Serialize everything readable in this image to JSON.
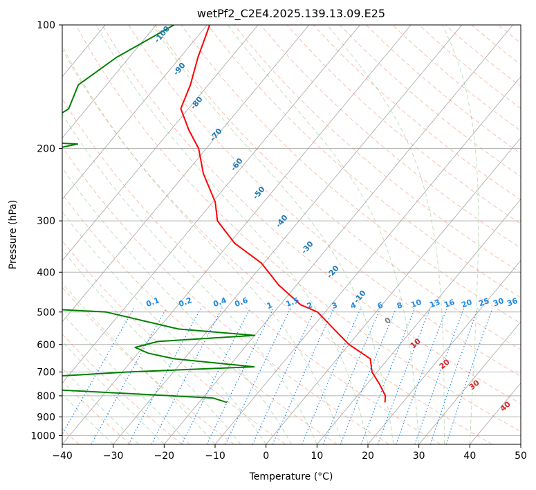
{
  "chart_data": {
    "type": "line",
    "title": "wetPf2_C2E4.2025.139.13.09.E25",
    "xlabel": "Temperature (°C)",
    "ylabel": "Pressure (hPa)",
    "xlim": [
      -40,
      50
    ],
    "ylim": [
      1050,
      100
    ],
    "y_scale": "log",
    "grid": true,
    "x_ticks": [
      -40,
      -30,
      -20,
      -10,
      0,
      10,
      20,
      30,
      40,
      50
    ],
    "y_ticks": [
      100,
      200,
      300,
      400,
      500,
      600,
      700,
      800,
      900,
      1000
    ],
    "x_tick_labels": [
      "−40",
      "−30",
      "−20",
      "−10",
      "0",
      "10",
      "20",
      "30",
      "40",
      "50"
    ],
    "y_tick_labels": [
      "100",
      "200",
      "300",
      "400",
      "500",
      "600",
      "700",
      "800",
      "900",
      "1000"
    ],
    "temperature_profile": {
      "color": "#ff0000",
      "points": [
        [
          -79.5,
          100
        ],
        [
          -76.5,
          120
        ],
        [
          -73.5,
          140
        ],
        [
          -71.5,
          160
        ],
        [
          -66.5,
          180
        ],
        [
          -61.5,
          200
        ],
        [
          -56.5,
          230
        ],
        [
          -49.5,
          270
        ],
        [
          -46.0,
          300
        ],
        [
          -39.0,
          340
        ],
        [
          -30.5,
          380
        ],
        [
          -23.5,
          430
        ],
        [
          -16.0,
          480
        ],
        [
          -11.5,
          500
        ],
        [
          -5.5,
          550
        ],
        [
          0.0,
          600
        ],
        [
          6.5,
          650
        ],
        [
          9.0,
          700
        ],
        [
          12.5,
          750
        ],
        [
          15.5,
          800
        ],
        [
          16.5,
          830
        ]
      ]
    },
    "dewpoint_profile": {
      "color": "#008000",
      "points": [
        [
          -86.5,
          100
        ],
        [
          -92.5,
          120
        ],
        [
          -95.5,
          140
        ],
        [
          -93.5,
          160
        ],
        [
          -96.5,
          180
        ],
        [
          -104.5,
          190
        ],
        [
          -86.0,
          195
        ],
        [
          -96.5,
          210
        ],
        [
          -102.5,
          230
        ],
        [
          -106.5,
          250
        ],
        [
          -104.5,
          270
        ],
        [
          -104.5,
          300
        ],
        [
          -94.5,
          350
        ],
        [
          -90.5,
          380
        ],
        [
          -92.5,
          410
        ],
        [
          -88.0,
          450
        ],
        [
          -67.0,
          490
        ],
        [
          -53.0,
          500
        ],
        [
          -36.0,
          550
        ],
        [
          -20.0,
          570
        ],
        [
          -38.0,
          590
        ],
        [
          -41.5,
          610
        ],
        [
          -38.0,
          630
        ],
        [
          -32.0,
          650
        ],
        [
          -15.0,
          680
        ],
        [
          -39.0,
          700
        ],
        [
          -55.0,
          720
        ],
        [
          -73.5,
          745
        ],
        [
          -63.0,
          760
        ],
        [
          -35.0,
          790
        ],
        [
          -18.0,
          810
        ],
        [
          -14.5,
          830
        ]
      ]
    },
    "dry_adiabat_labels": [
      "-100",
      "-90",
      "-80",
      "-70",
      "-60",
      "-50",
      "-40",
      "-30",
      "-20",
      "-10"
    ],
    "mixing_ratio_labels": [
      "0.1",
      "0.2",
      "0.4",
      "0.6",
      "1",
      "1.5",
      "2",
      "3",
      "4",
      "6",
      "8",
      "10",
      "13",
      "16",
      "20",
      "25",
      "30",
      "36"
    ],
    "moist_adiabat_labels": [
      "0",
      "10",
      "20",
      "30",
      "40"
    ],
    "colors": {
      "dry_adiabat": "#f08c6e",
      "moist_adiabat": "#7fbf7f",
      "mixing_ratio": "#1e88e5",
      "isotherm": "#999999",
      "dry_adiabat_label": "#1f77b4",
      "mixing_ratio_label": "#1e88e5",
      "moist_adiabat_label": "#d62728",
      "zero_label": "#808080"
    }
  }
}
